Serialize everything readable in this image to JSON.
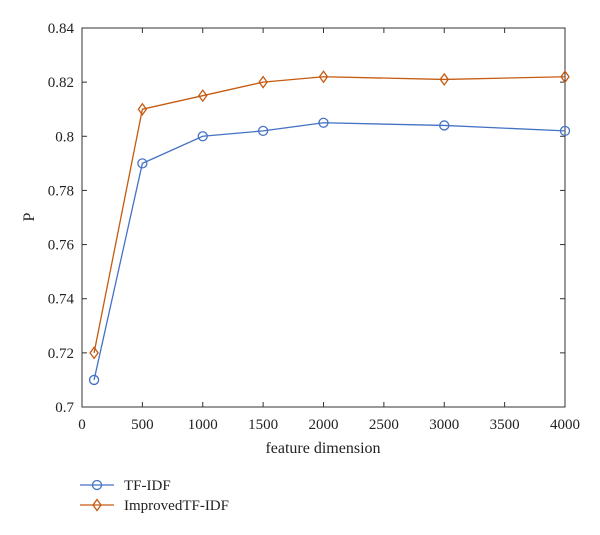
{
  "chart_data": {
    "type": "line",
    "title": "",
    "xlabel": "feature dimension",
    "ylabel": "P",
    "xlim": [
      0,
      4000
    ],
    "ylim": [
      0.7,
      0.84
    ],
    "xticks": [
      0,
      500,
      1000,
      1500,
      2000,
      2500,
      3000,
      3500,
      4000
    ],
    "yticks": [
      0.7,
      0.72,
      0.74,
      0.76,
      0.78,
      0.8,
      0.82,
      0.84
    ],
    "xtick_labels": [
      "0",
      "500",
      "1000",
      "1500",
      "2000",
      "2500",
      "3000",
      "3500",
      "4000"
    ],
    "ytick_labels": [
      "0.7",
      "0.72",
      "0.74",
      "0.76",
      "0.78",
      "0.8",
      "0.82",
      "0.84"
    ],
    "grid": false,
    "legend_position": "bottom-left, below plot",
    "series": [
      {
        "name": "TF-IDF",
        "marker": "circle",
        "color": "#4472c4",
        "x": [
          100,
          500,
          1000,
          1500,
          2000,
          3000,
          4000
        ],
        "y": [
          0.71,
          0.79,
          0.8,
          0.802,
          0.805,
          0.804,
          0.802
        ]
      },
      {
        "name": "ImprovedTF-IDF",
        "marker": "diamond",
        "color": "#c55a11",
        "x": [
          100,
          500,
          1000,
          1500,
          2000,
          3000,
          4000
        ],
        "y": [
          0.72,
          0.81,
          0.815,
          0.82,
          0.822,
          0.821,
          0.822
        ]
      }
    ]
  }
}
